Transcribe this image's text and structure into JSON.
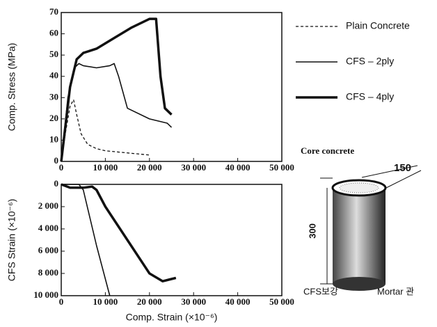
{
  "chart_data": [
    {
      "type": "line",
      "ylabel": "Comp. Stress (MPa)",
      "xlim": [
        0,
        50000
      ],
      "ylim": [
        0,
        70
      ],
      "xticks": [
        0,
        {
          "value": 10000,
          "label": "10 000"
        },
        {
          "value": 20000,
          "label": "20 000"
        },
        {
          "value": 30000,
          "label": "30 000"
        },
        {
          "value": 40000,
          "label": "40 000"
        },
        {
          "value": 50000,
          "label": "50 000"
        }
      ],
      "yticks": [
        0,
        10,
        20,
        30,
        40,
        50,
        60,
        70
      ],
      "series": [
        {
          "name": "Plain Concrete",
          "color": "#111111",
          "dash": "4,3",
          "width": 1.3,
          "x": [
            0,
            1000,
            2000,
            2800,
            3500,
            4500,
            6000,
            8000,
            10000,
            15000,
            20000
          ],
          "values": [
            0,
            14,
            26,
            29,
            22,
            13,
            8,
            6,
            5,
            4,
            3
          ]
        },
        {
          "name": "CFS – 2ply",
          "color": "#111111",
          "width": 1.6,
          "x": [
            0,
            1500,
            3000,
            4000,
            5000,
            8000,
            11000,
            12000,
            13000,
            15000,
            20000,
            24000,
            25000
          ],
          "values": [
            0,
            30,
            44,
            46,
            45,
            44,
            45,
            46,
            40,
            25,
            20,
            18,
            16
          ]
        },
        {
          "name": "CFS – 4ply",
          "color": "#111111",
          "width": 3.5,
          "x": [
            0,
            2000,
            3500,
            5000,
            8000,
            12000,
            16000,
            20000,
            21500,
            22500,
            23500,
            24500,
            25000
          ],
          "values": [
            0,
            35,
            48,
            51,
            53,
            58,
            63,
            67,
            67,
            40,
            25,
            23,
            22
          ]
        }
      ]
    },
    {
      "type": "line",
      "ylabel": "CFS Strain (×10⁻⁶)",
      "xlabel": "Comp. Strain (×10⁻⁶)",
      "xlim": [
        0,
        50000
      ],
      "ylim": [
        10000,
        0
      ],
      "xticks": [
        0,
        {
          "value": 10000,
          "label": "10 000"
        },
        {
          "value": 20000,
          "label": "20 000"
        },
        {
          "value": 30000,
          "label": "30 000"
        },
        {
          "value": 40000,
          "label": "40 000"
        },
        {
          "value": 50000,
          "label": "50 000"
        }
      ],
      "yticks": [
        0,
        {
          "value": 2000,
          "label": "2 000"
        },
        {
          "value": 4000,
          "label": "4 000"
        },
        {
          "value": 6000,
          "label": "6 000"
        },
        {
          "value": 8000,
          "label": "8 000"
        },
        {
          "value": 10000,
          "label": "10 000"
        }
      ],
      "series": [
        {
          "color": "#111111",
          "width": 1.6,
          "x": [
            0,
            4000,
            5000,
            8000,
            11000
          ],
          "values": [
            0,
            0,
            500,
            5500,
            10000
          ]
        },
        {
          "color": "#111111",
          "width": 3.5,
          "x": [
            0,
            2000,
            5000,
            7000,
            8000,
            10000,
            15000,
            20000,
            23000,
            25000,
            26000
          ],
          "values": [
            0,
            300,
            300,
            200,
            500,
            2000,
            5000,
            8000,
            8700,
            8500,
            8400
          ]
        }
      ]
    }
  ],
  "diagram": {
    "core": "Core concrete",
    "diameter": "150",
    "height": "300",
    "left": "CFS보강",
    "right": "Mortar 관"
  }
}
